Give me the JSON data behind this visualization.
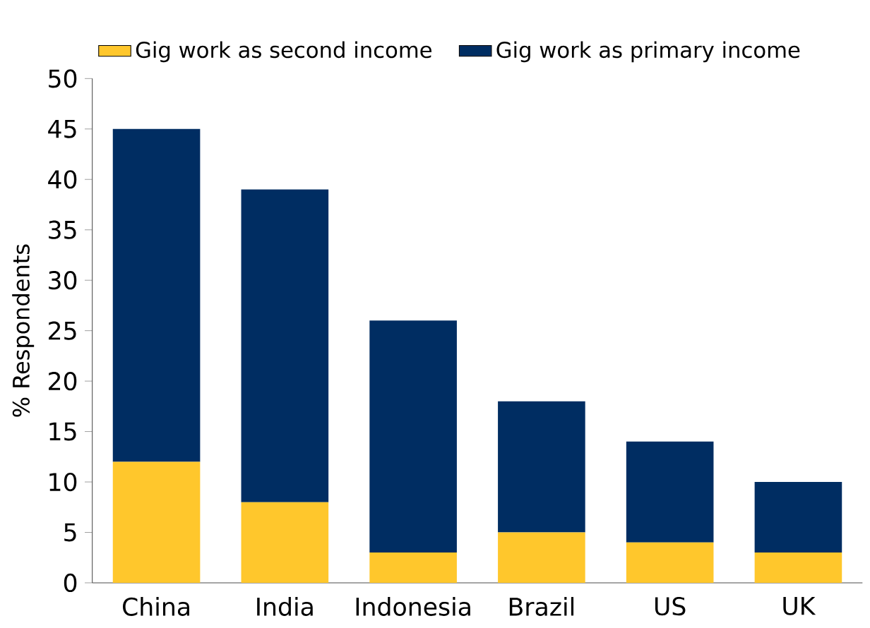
{
  "chart_data": {
    "type": "bar",
    "stacked": true,
    "ylabel": "% Respondents",
    "categories": [
      "China",
      "India",
      "Indonesia",
      "Brazil",
      "US",
      "UK"
    ],
    "series": [
      {
        "name": "Gig work as second income",
        "color": "#ffc72c",
        "values": [
          12,
          8,
          3,
          5,
          4,
          3
        ]
      },
      {
        "name": "Gig work as primary income",
        "color": "#002d62",
        "values": [
          33,
          31,
          23,
          13,
          10,
          7
        ]
      }
    ],
    "ylim": [
      0,
      50
    ],
    "yticks": [
      0,
      5,
      10,
      15,
      20,
      25,
      30,
      35,
      40,
      45,
      50
    ],
    "legend": "top left"
  }
}
